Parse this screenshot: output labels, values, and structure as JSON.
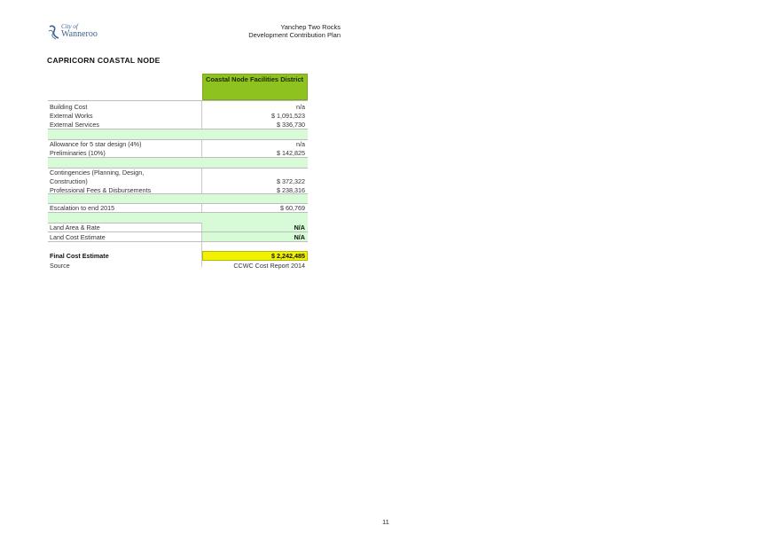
{
  "header": {
    "logo_city": "City of",
    "logo_name": "Wanneroo",
    "title_line1": "Yanchep Two Rocks",
    "title_line2": "Development Contribution Plan"
  },
  "doc_title": "CAPRICORN COASTAL NODE",
  "table": {
    "column_header": "Coastal Node Facilities District",
    "rows": [
      {
        "label": "Building Cost",
        "value": "n/a"
      },
      {
        "label": "External Works",
        "value": "$ 1,091,523"
      },
      {
        "label": "External Services",
        "value": "$ 336,730"
      },
      {
        "label": "Allowance for 5 star design (4%)",
        "value": "n/a"
      },
      {
        "label": "Preliminaries (10%)",
        "value": "$ 142,825"
      },
      {
        "label": "Contingencies (Planning, Design,",
        "value": ""
      },
      {
        "label": "Construction)",
        "value": "$ 372,322"
      },
      {
        "label": "Professional Fees & Disbursements",
        "value": "$ 238,316"
      },
      {
        "label": "Escalation to end 2015",
        "value": "$ 60,769"
      },
      {
        "label": "Land Area & Rate",
        "value": "N/A"
      },
      {
        "label": "Land Cost Estimate",
        "value": "N/A"
      }
    ],
    "final": {
      "label": "Final Cost Estimate",
      "value": "$ 2,242,485"
    },
    "source": {
      "label": "Source",
      "value": "CCWC Cost Report 2014"
    }
  },
  "page_number": "11",
  "colors": {
    "header_green": "#8ec21f",
    "light_green": "#d6fbd6",
    "highlight_yellow": "#f2f200",
    "logo_blue": "#3d5f8f"
  }
}
